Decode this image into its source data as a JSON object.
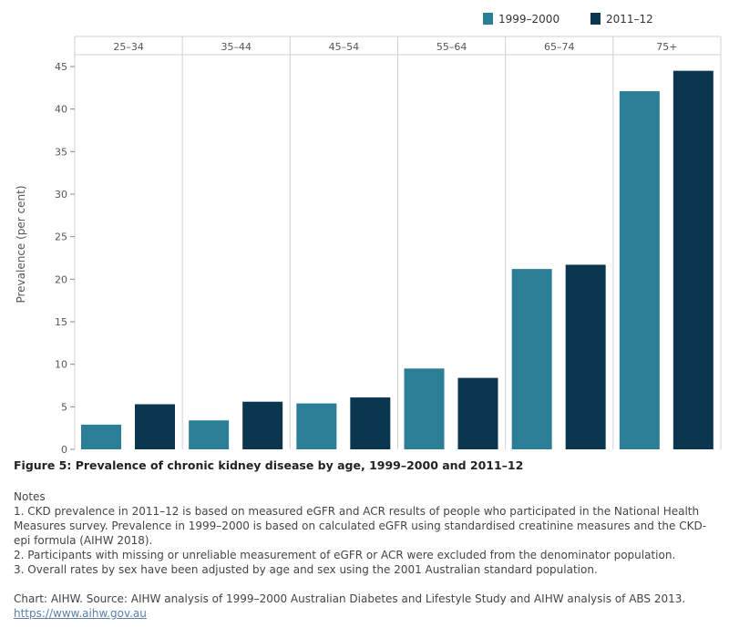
{
  "chart_data": {
    "type": "bar",
    "categories": [
      "25–34",
      "35–44",
      "45–54",
      "55–64",
      "65–74",
      "75+"
    ],
    "series": [
      {
        "name": "1999–2000",
        "values": [
          2.9,
          3.4,
          5.4,
          9.5,
          21.2,
          42.1
        ],
        "color": "#2a7f96"
      },
      {
        "name": "2011–12",
        "values": [
          5.3,
          5.6,
          6.1,
          8.4,
          21.7,
          44.5
        ],
        "color": "#0b3650"
      }
    ],
    "ylabel": "Prevalence (per cent)",
    "ylim": [
      0,
      46
    ],
    "yticks": [
      0,
      5,
      10,
      15,
      20,
      25,
      30,
      35,
      40,
      45
    ],
    "legend_position": "top-right",
    "grid": false
  },
  "caption": "Figure 5: Prevalence of chronic kidney disease by age, 1999–2000 and 2011–12",
  "notes_heading": "Notes",
  "notes": [
    "1. CKD prevalence in 2011–12 is based on measured eGFR and ACR results of people who participated in the National Health Measures survey. Prevalence in 1999–2000 is based on calculated eGFR using standardised creatinine measures and the CKD-epi formula (AIHW 2018).",
    "2. Participants with missing or unreliable measurement of eGFR or ACR were excluded from the denominator population.",
    "3. Overall rates by sex have been adjusted by age and sex using the 2001 Australian standard population."
  ],
  "source": "Chart: AIHW. Source: AIHW analysis of 1999–2000 Australian Diabetes and Lifestyle Study and AIHW analysis of ABS 2013.",
  "link": "https://www.aihw.gov.au"
}
